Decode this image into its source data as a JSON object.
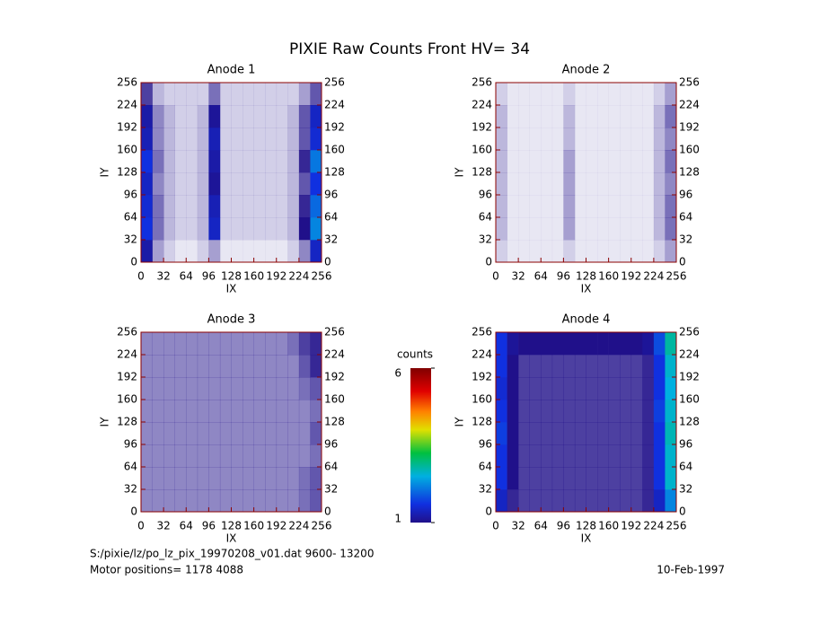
{
  "title": "PIXIE Raw Counts Front HV= 34",
  "footer": {
    "file": "S:/pixie/lz/po_lz_pix_19970208_v01.dat   9600- 13200",
    "motor": "Motor positions= 1178 4088",
    "date": "10-Feb-1997"
  },
  "colorbar": {
    "label": "counts",
    "lim": [
      1,
      6
    ],
    "ticks": [
      1,
      6
    ]
  },
  "chart_data": [
    {
      "type": "heatmap",
      "title": "Anode 1",
      "x_label": "IX",
      "y_label": "IY",
      "xlim": [
        0,
        256
      ],
      "ylim": [
        0,
        256
      ],
      "xticks": [
        0,
        32,
        64,
        96,
        128,
        160,
        192,
        224,
        256
      ],
      "yticks": [
        0,
        32,
        64,
        96,
        128,
        160,
        192,
        224,
        256
      ],
      "z": [
        [
          1.2,
          0.4,
          0.2,
          0.1,
          0.1,
          0.2,
          0.4,
          0.1,
          0.1,
          0.1,
          0.1,
          0.1,
          0.1,
          0.2,
          0.5,
          1.4
        ],
        [
          1.6,
          0.6,
          0.3,
          0.2,
          0.2,
          0.3,
          1.4,
          0.2,
          0.2,
          0.2,
          0.2,
          0.2,
          0.2,
          0.3,
          1.0,
          2.2
        ],
        [
          1.5,
          0.6,
          0.3,
          0.2,
          0.2,
          0.3,
          1.3,
          0.2,
          0.2,
          0.2,
          0.2,
          0.2,
          0.2,
          0.3,
          0.9,
          2.0
        ],
        [
          1.4,
          0.5,
          0.3,
          0.2,
          0.2,
          0.3,
          1.1,
          0.2,
          0.2,
          0.2,
          0.2,
          0.2,
          0.2,
          0.3,
          0.7,
          1.6
        ],
        [
          1.6,
          0.6,
          0.3,
          0.2,
          0.2,
          0.3,
          1.2,
          0.2,
          0.2,
          0.2,
          0.2,
          0.2,
          0.2,
          0.3,
          0.9,
          2.1
        ],
        [
          1.3,
          0.5,
          0.3,
          0.2,
          0.2,
          0.3,
          1.3,
          0.2,
          0.2,
          0.2,
          0.2,
          0.2,
          0.2,
          0.3,
          0.7,
          1.5
        ],
        [
          1.2,
          0.5,
          0.3,
          0.2,
          0.2,
          0.3,
          1.1,
          0.2,
          0.2,
          0.2,
          0.2,
          0.2,
          0.2,
          0.3,
          0.7,
          1.4
        ],
        [
          0.8,
          0.3,
          0.2,
          0.2,
          0.2,
          0.2,
          0.6,
          0.2,
          0.2,
          0.2,
          0.2,
          0.2,
          0.2,
          0.2,
          0.4,
          0.7
        ]
      ]
    },
    {
      "type": "heatmap",
      "title": "Anode 2",
      "x_label": "IX",
      "y_label": "IY",
      "xlim": [
        0,
        256
      ],
      "ylim": [
        0,
        256
      ],
      "xticks": [
        0,
        32,
        64,
        96,
        128,
        160,
        192,
        224,
        256
      ],
      "yticks": [
        0,
        32,
        64,
        96,
        128,
        160,
        192,
        224,
        256
      ],
      "z": [
        [
          0.2,
          0.1,
          0.1,
          0.1,
          0.1,
          0.1,
          0.2,
          0.1,
          0.1,
          0.1,
          0.1,
          0.1,
          0.1,
          0.1,
          0.2,
          0.4
        ],
        [
          0.3,
          0.1,
          0.1,
          0.1,
          0.1,
          0.1,
          0.4,
          0.1,
          0.1,
          0.1,
          0.1,
          0.1,
          0.1,
          0.1,
          0.3,
          0.6
        ],
        [
          0.3,
          0.1,
          0.1,
          0.1,
          0.1,
          0.1,
          0.4,
          0.1,
          0.1,
          0.1,
          0.1,
          0.1,
          0.1,
          0.1,
          0.3,
          0.6
        ],
        [
          0.3,
          0.1,
          0.1,
          0.1,
          0.1,
          0.1,
          0.4,
          0.1,
          0.1,
          0.1,
          0.1,
          0.1,
          0.1,
          0.1,
          0.3,
          0.5
        ],
        [
          0.3,
          0.1,
          0.1,
          0.1,
          0.1,
          0.1,
          0.4,
          0.1,
          0.1,
          0.1,
          0.1,
          0.1,
          0.1,
          0.1,
          0.3,
          0.6
        ],
        [
          0.3,
          0.1,
          0.1,
          0.1,
          0.1,
          0.1,
          0.3,
          0.1,
          0.1,
          0.1,
          0.1,
          0.1,
          0.1,
          0.1,
          0.3,
          0.5
        ],
        [
          0.3,
          0.1,
          0.1,
          0.1,
          0.1,
          0.1,
          0.3,
          0.1,
          0.1,
          0.1,
          0.1,
          0.1,
          0.1,
          0.1,
          0.3,
          0.6
        ],
        [
          0.2,
          0.1,
          0.1,
          0.1,
          0.1,
          0.1,
          0.2,
          0.1,
          0.1,
          0.1,
          0.1,
          0.1,
          0.1,
          0.1,
          0.2,
          0.4
        ]
      ]
    },
    {
      "type": "heatmap",
      "title": "Anode 3",
      "x_label": "IX",
      "y_label": "IY",
      "xlim": [
        0,
        256
      ],
      "ylim": [
        0,
        256
      ],
      "xticks": [
        0,
        32,
        64,
        96,
        128,
        160,
        192,
        224,
        256
      ],
      "yticks": [
        0,
        32,
        64,
        96,
        128,
        160,
        192,
        224,
        256
      ],
      "z": [
        [
          0.5,
          0.5,
          0.5,
          0.5,
          0.5,
          0.5,
          0.5,
          0.5,
          0.5,
          0.5,
          0.5,
          0.5,
          0.5,
          0.5,
          0.6,
          0.7
        ],
        [
          0.5,
          0.5,
          0.5,
          0.5,
          0.5,
          0.5,
          0.5,
          0.5,
          0.5,
          0.5,
          0.5,
          0.5,
          0.5,
          0.5,
          0.6,
          0.7
        ],
        [
          0.5,
          0.5,
          0.5,
          0.5,
          0.5,
          0.5,
          0.5,
          0.5,
          0.5,
          0.5,
          0.5,
          0.5,
          0.5,
          0.5,
          0.5,
          0.6
        ],
        [
          0.5,
          0.5,
          0.5,
          0.5,
          0.5,
          0.5,
          0.5,
          0.5,
          0.5,
          0.5,
          0.5,
          0.5,
          0.5,
          0.5,
          0.5,
          0.7
        ],
        [
          0.5,
          0.5,
          0.5,
          0.5,
          0.5,
          0.5,
          0.5,
          0.5,
          0.5,
          0.5,
          0.5,
          0.5,
          0.5,
          0.5,
          0.5,
          0.6
        ],
        [
          0.5,
          0.5,
          0.5,
          0.5,
          0.5,
          0.5,
          0.5,
          0.5,
          0.5,
          0.5,
          0.5,
          0.5,
          0.5,
          0.5,
          0.6,
          0.7
        ],
        [
          0.5,
          0.5,
          0.5,
          0.5,
          0.5,
          0.5,
          0.5,
          0.5,
          0.5,
          0.5,
          0.5,
          0.5,
          0.5,
          0.5,
          0.7,
          0.9
        ],
        [
          0.5,
          0.5,
          0.5,
          0.5,
          0.5,
          0.5,
          0.5,
          0.5,
          0.5,
          0.5,
          0.5,
          0.5,
          0.5,
          0.6,
          0.8,
          0.9
        ]
      ]
    },
    {
      "type": "heatmap",
      "title": "Anode 4",
      "x_label": "IX",
      "y_label": "IY",
      "xlim": [
        0,
        256
      ],
      "ylim": [
        0,
        256
      ],
      "xticks": [
        0,
        32,
        64,
        96,
        128,
        160,
        192,
        224,
        256
      ],
      "yticks": [
        0,
        32,
        64,
        96,
        128,
        160,
        192,
        224,
        256
      ],
      "z": [
        [
          1.4,
          0.9,
          0.8,
          0.8,
          0.8,
          0.8,
          0.8,
          0.8,
          0.8,
          0.8,
          0.8,
          0.8,
          0.8,
          0.9,
          1.4,
          2.2
        ],
        [
          1.6,
          1.0,
          0.8,
          0.8,
          0.8,
          0.8,
          0.8,
          0.8,
          0.8,
          0.8,
          0.8,
          0.8,
          0.8,
          0.9,
          1.6,
          2.6
        ],
        [
          1.6,
          1.0,
          0.8,
          0.8,
          0.8,
          0.8,
          0.8,
          0.8,
          0.8,
          0.8,
          0.8,
          0.8,
          0.8,
          0.9,
          1.6,
          2.6
        ],
        [
          1.7,
          1.0,
          0.8,
          0.8,
          0.8,
          0.8,
          0.8,
          0.8,
          0.8,
          0.8,
          0.8,
          0.8,
          0.8,
          0.9,
          1.6,
          2.7
        ],
        [
          1.6,
          1.0,
          0.8,
          0.8,
          0.8,
          0.8,
          0.8,
          0.8,
          0.8,
          0.8,
          0.8,
          0.8,
          0.8,
          0.9,
          1.7,
          2.6
        ],
        [
          1.5,
          1.0,
          0.8,
          0.8,
          0.8,
          0.8,
          0.8,
          0.8,
          0.8,
          0.8,
          0.8,
          0.8,
          0.8,
          0.9,
          1.6,
          2.5
        ],
        [
          1.6,
          1.0,
          0.8,
          0.8,
          0.8,
          0.8,
          0.8,
          0.8,
          0.8,
          0.8,
          0.8,
          0.8,
          0.8,
          0.9,
          1.6,
          2.6
        ],
        [
          1.6,
          1.1,
          1.0,
          1.0,
          1.0,
          1.0,
          1.0,
          1.0,
          1.0,
          1.0,
          1.0,
          1.0,
          1.0,
          1.1,
          1.8,
          2.8
        ]
      ]
    }
  ]
}
